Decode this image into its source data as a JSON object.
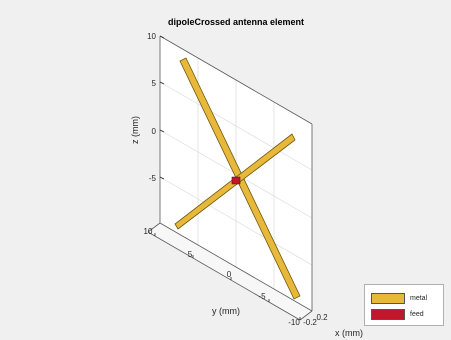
{
  "figure": {
    "title": "dipoleCrossed antenna element",
    "xlabel": "x (mm)",
    "ylabel": "y (mm)",
    "zlabel": "z (mm)",
    "z_ticks": [
      "10",
      "5",
      "0",
      "-5"
    ],
    "y_ticks": [
      "10",
      "5",
      "0",
      "-5",
      "-10"
    ],
    "x_ticks": [
      "-0.2",
      "0.2"
    ],
    "colors": {
      "metal": "#e8b83a",
      "feed": "#c0182a",
      "background": "#f0f0f0"
    }
  },
  "legend": {
    "items": [
      {
        "label": "metal",
        "color": "#e8b83a"
      },
      {
        "label": "feed",
        "color": "#c0182a"
      }
    ]
  }
}
